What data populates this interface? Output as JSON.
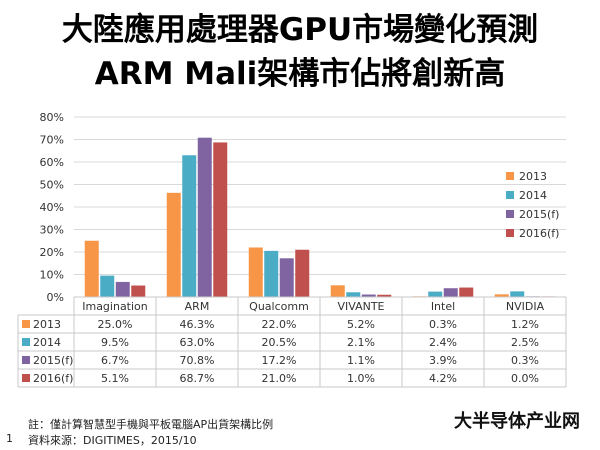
{
  "title_line1": "大陸應用處理器GPU市場變化預測",
  "title_line2": "ARM Mali架構市佔將創新高",
  "footnote": "註：僅計算智慧型手機與平板電腦AP出貨架構比例",
  "source": "資料來源：DIGITIMES，2015/10",
  "page_number": "1",
  "watermark": "大半导体产业网",
  "chart_data": {
    "type": "bar",
    "title": "",
    "xlabel": "",
    "ylabel": "",
    "ylim": [
      0,
      80
    ],
    "yticks": [
      "0%",
      "10%",
      "20%",
      "30%",
      "40%",
      "50%",
      "60%",
      "70%",
      "80%"
    ],
    "grid": true,
    "legend_position": "right",
    "categories": [
      "Imagination",
      "ARM",
      "Qualcomm",
      "VIVANTE",
      "Intel",
      "NVIDIA"
    ],
    "series": [
      {
        "name": "2013",
        "color": "#F79646",
        "values": [
          25.0,
          46.3,
          22.0,
          5.2,
          0.3,
          1.2
        ],
        "labels": [
          "25.0%",
          "46.3%",
          "22.0%",
          "5.2%",
          "0.3%",
          "1.2%"
        ]
      },
      {
        "name": "2014",
        "color": "#4BACC6",
        "values": [
          9.5,
          63.0,
          20.5,
          2.1,
          2.4,
          2.5
        ],
        "labels": [
          "9.5%",
          "63.0%",
          "20.5%",
          "2.1%",
          "2.4%",
          "2.5%"
        ]
      },
      {
        "name": "2015(f)",
        "color": "#8064A2",
        "values": [
          6.7,
          70.8,
          17.2,
          1.1,
          3.9,
          0.3
        ],
        "labels": [
          "6.7%",
          "70.8%",
          "17.2%",
          "1.1%",
          "3.9%",
          "0.3%"
        ]
      },
      {
        "name": "2016(f)",
        "color": "#C0504D",
        "values": [
          5.1,
          68.7,
          21.0,
          1.0,
          4.2,
          0.0
        ],
        "labels": [
          "5.1%",
          "68.7%",
          "21.0%",
          "1.0%",
          "4.2%",
          "0.0%"
        ]
      }
    ]
  }
}
